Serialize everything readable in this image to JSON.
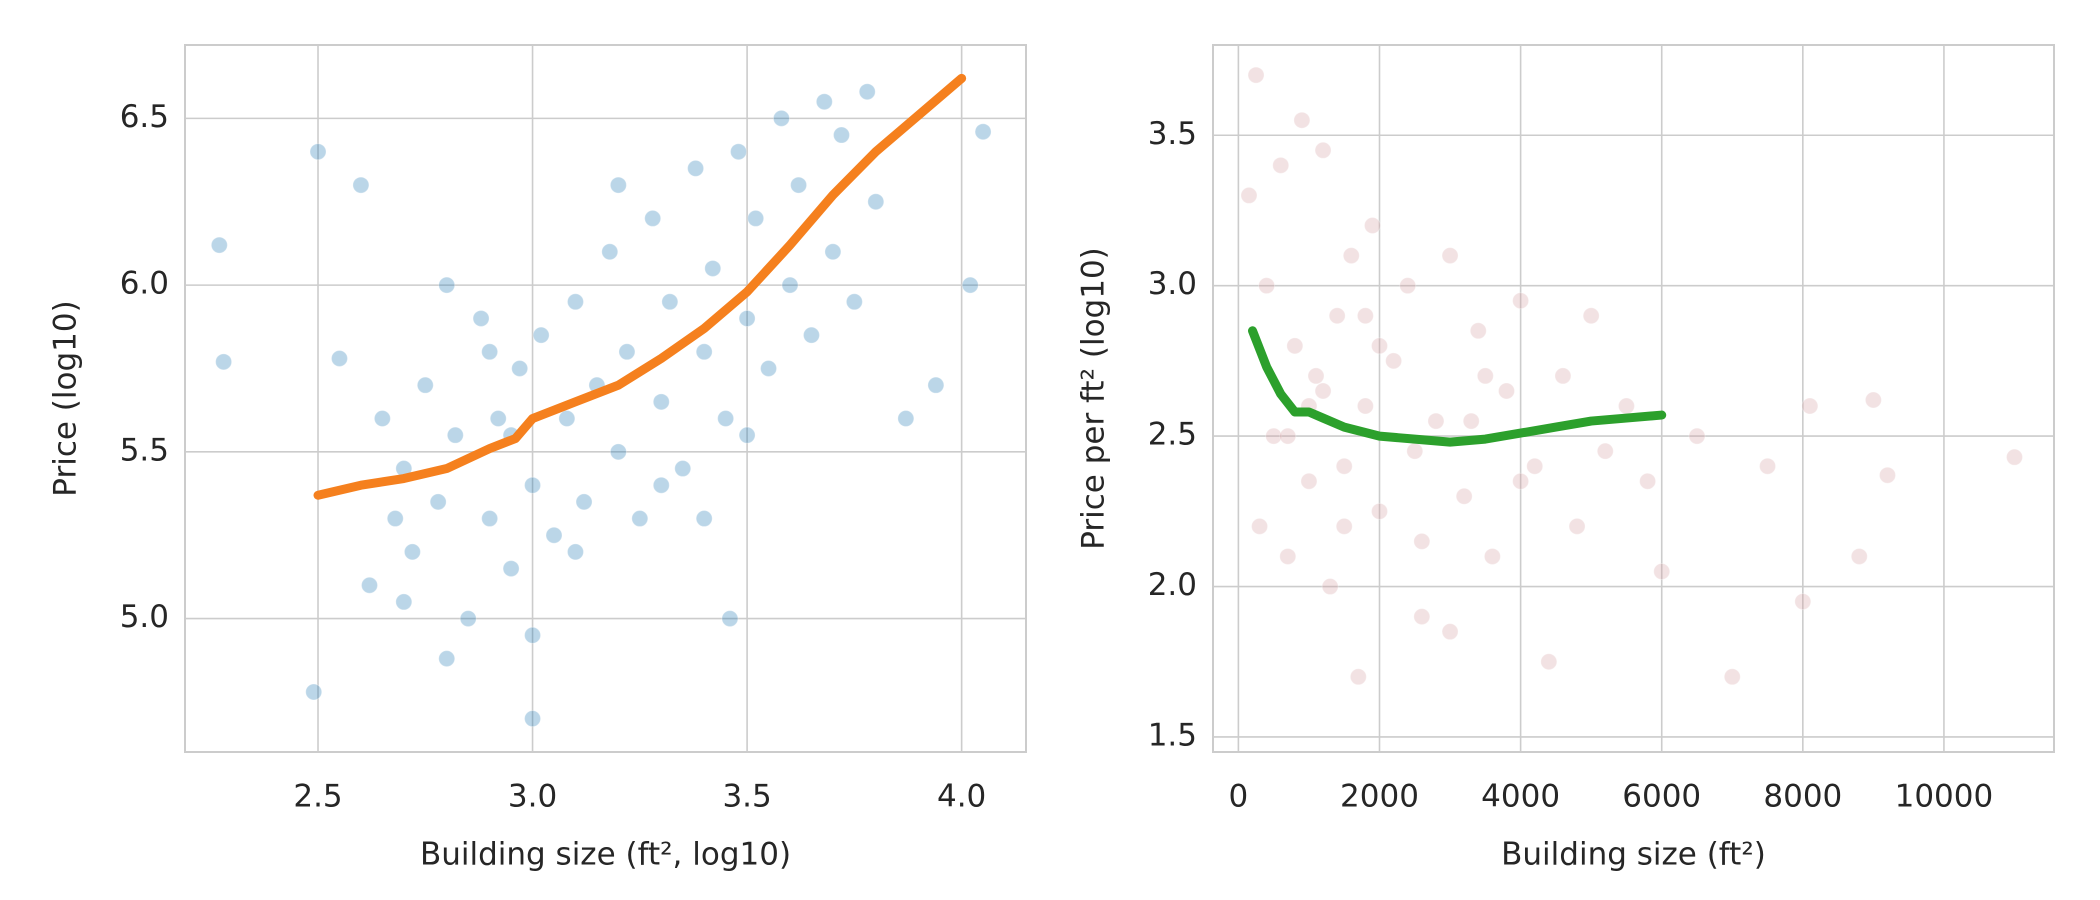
{
  "chart_data": [
    {
      "type": "scatter",
      "xlabel": "Building size (ft², log10)",
      "ylabel": "Price (log10)",
      "xlim": [
        2.19,
        4.15
      ],
      "ylim": [
        4.6,
        6.72
      ],
      "xticks": [
        2.5,
        {
          "value": 3,
          "label": "3.0"
        },
        3.5,
        {
          "value": 4,
          "label": "4.0"
        }
      ],
      "yticks": [
        {
          "value": 5,
          "label": "5.0"
        },
        5.5,
        {
          "value": 6,
          "label": "6.0"
        },
        6.5
      ],
      "grid": true,
      "series": [
        {
          "kind": "points",
          "color": "#1f77b4",
          "opacity": 0.3,
          "x": [
            2.27,
            2.28,
            2.5,
            2.49,
            2.6,
            2.55,
            2.62,
            2.65,
            2.68,
            2.7,
            2.72,
            2.75,
            2.78,
            2.8,
            2.82,
            2.85,
            2.88,
            2.9,
            2.92,
            2.95,
            2.97,
            3.0,
            3.0,
            3.02,
            3.05,
            3.08,
            3.1,
            3.12,
            3.15,
            3.18,
            3.2,
            3.22,
            3.25,
            3.28,
            3.3,
            3.32,
            3.35,
            3.38,
            3.4,
            3.42,
            3.45,
            3.48,
            3.5,
            3.52,
            3.55,
            3.58,
            3.6,
            3.62,
            3.65,
            3.68,
            3.7,
            3.72,
            3.75,
            3.78,
            3.8,
            3.87,
            3.94,
            4.02,
            4.05,
            3.46,
            2.8,
            3.0,
            2.95,
            3.1,
            3.3,
            3.5,
            2.7,
            2.9,
            3.2,
            3.4
          ],
          "y": [
            6.12,
            5.77,
            6.4,
            4.78,
            6.3,
            5.78,
            5.1,
            5.6,
            5.3,
            5.45,
            5.2,
            5.7,
            5.35,
            4.88,
            5.55,
            5.0,
            5.9,
            5.3,
            5.6,
            5.15,
            5.75,
            4.7,
            5.4,
            5.85,
            5.25,
            5.6,
            5.95,
            5.35,
            5.7,
            6.1,
            5.5,
            5.8,
            5.3,
            6.2,
            5.65,
            5.95,
            5.45,
            6.35,
            5.8,
            6.05,
            5.6,
            6.4,
            5.9,
            6.2,
            5.75,
            6.5,
            6.0,
            6.3,
            5.85,
            6.55,
            6.1,
            6.45,
            5.95,
            6.58,
            6.25,
            5.6,
            5.7,
            6.0,
            6.46,
            5.0,
            6.0,
            4.95,
            5.55,
            5.2,
            5.4,
            5.55,
            5.05,
            5.8,
            6.3,
            5.3
          ]
        },
        {
          "kind": "line",
          "color": "#f5801e",
          "x": [
            2.5,
            2.6,
            2.7,
            2.8,
            2.9,
            2.96,
            3.0,
            3.1,
            3.2,
            3.3,
            3.4,
            3.5,
            3.6,
            3.7,
            3.8,
            3.9,
            4.0
          ],
          "y": [
            5.37,
            5.4,
            5.42,
            5.45,
            5.51,
            5.54,
            5.6,
            5.65,
            5.7,
            5.78,
            5.87,
            5.98,
            6.12,
            6.27,
            6.4,
            6.51,
            6.62
          ]
        }
      ]
    },
    {
      "type": "scatter",
      "xlabel": "Building size (ft²)",
      "ylabel": "Price per ft² (log10)",
      "xlim": [
        -360,
        11560
      ],
      "ylim": [
        1.45,
        3.8
      ],
      "xticks": [
        0,
        2000,
        4000,
        6000,
        8000,
        10000
      ],
      "yticks": [
        1.5,
        {
          "value": 2,
          "label": "2.0"
        },
        2.5,
        {
          "value": 3,
          "label": "3.0"
        },
        3.5
      ],
      "grid": true,
      "series": [
        {
          "kind": "points",
          "color": "#d49ea3",
          "opacity": 0.3,
          "x": [
            150,
            250,
            300,
            400,
            500,
            600,
            700,
            800,
            900,
            1000,
            1100,
            1200,
            1300,
            1400,
            1500,
            1600,
            1700,
            1800,
            1900,
            2000,
            2200,
            2400,
            2600,
            2800,
            3000,
            3200,
            3400,
            3600,
            3800,
            4000,
            4200,
            4400,
            4600,
            4800,
            5000,
            5200,
            5500,
            5800,
            6000,
            6500,
            7000,
            7500,
            8000,
            8100,
            8800,
            9000,
            9200,
            11000,
            1000,
            1500,
            2000,
            2500,
            3000,
            3500,
            4000,
            700,
            1200,
            1800,
            2600,
            3300
          ],
          "y": [
            3.3,
            3.7,
            2.2,
            3.0,
            2.5,
            3.4,
            2.1,
            2.8,
            3.55,
            2.35,
            2.7,
            3.45,
            2.0,
            2.9,
            2.4,
            3.1,
            1.7,
            2.6,
            3.2,
            2.25,
            2.75,
            3.0,
            1.9,
            2.55,
            3.1,
            2.3,
            2.85,
            2.1,
            2.65,
            2.95,
            2.4,
            1.75,
            2.7,
            2.2,
            2.9,
            2.45,
            2.6,
            2.35,
            2.05,
            2.5,
            1.7,
            2.4,
            1.95,
            2.6,
            2.1,
            2.62,
            2.37,
            2.43,
            2.6,
            2.2,
            2.8,
            2.45,
            1.85,
            2.7,
            2.35,
            2.5,
            2.65,
            2.9,
            2.15,
            2.55
          ]
        },
        {
          "kind": "line",
          "color": "#2ca02c",
          "x": [
            200,
            400,
            600,
            800,
            1000,
            1200,
            1500,
            2000,
            2500,
            3000,
            3500,
            4000,
            4500,
            5000,
            5500,
            6000
          ],
          "y": [
            2.85,
            2.73,
            2.64,
            2.58,
            2.58,
            2.56,
            2.53,
            2.5,
            2.49,
            2.48,
            2.49,
            2.51,
            2.53,
            2.55,
            2.56,
            2.57
          ]
        }
      ]
    }
  ]
}
